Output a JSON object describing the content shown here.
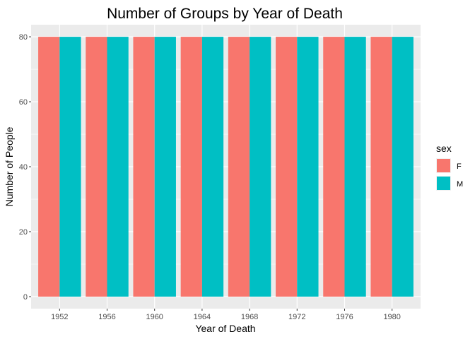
{
  "chart_data": {
    "type": "bar",
    "title": "Number of Groups by Year of Death",
    "xlabel": "Year of Death",
    "ylabel": "Number of People",
    "categories": [
      "1952",
      "1956",
      "1960",
      "1964",
      "1968",
      "1972",
      "1976",
      "1980"
    ],
    "series": [
      {
        "name": "F",
        "color": "#F8766D",
        "values": [
          80,
          80,
          80,
          80,
          80,
          80,
          80,
          80
        ]
      },
      {
        "name": "M",
        "color": "#00BFC4",
        "values": [
          80,
          80,
          80,
          80,
          80,
          80,
          80,
          80
        ]
      }
    ],
    "ylim": [
      0,
      83.5
    ],
    "yticks": [
      0,
      20,
      40,
      60,
      80
    ],
    "grid": true,
    "legend": {
      "title": "sex",
      "position": "right"
    },
    "panel_background": "#EBEBEB"
  }
}
